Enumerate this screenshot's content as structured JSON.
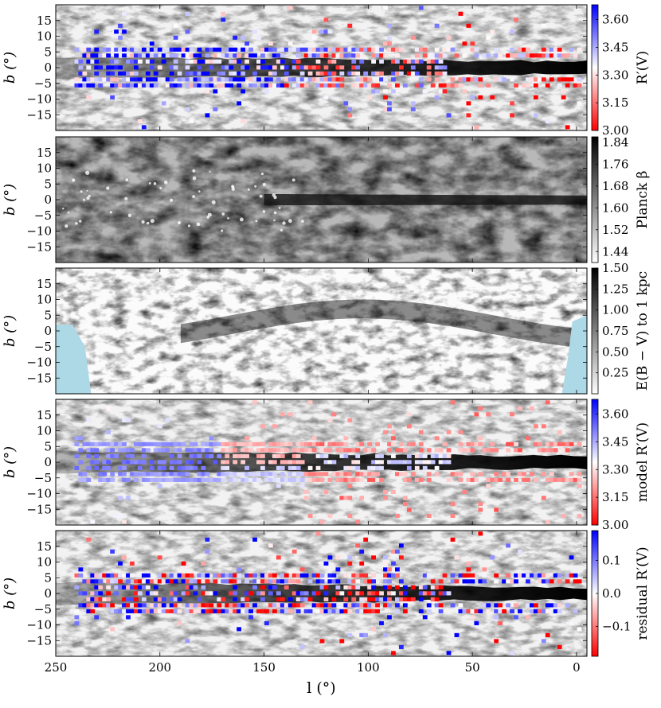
{
  "chart_data": [
    {
      "type": "heatmap",
      "ylabel": "b (°)",
      "colorbar_label": "R′(V)",
      "colorbar_ticks": [
        "3.00",
        "3.15",
        "3.30",
        "3.45",
        "3.60"
      ],
      "colormap": "red-white-blue",
      "clim": [
        3.0,
        3.68
      ],
      "background": "grayscale dust map",
      "yticks": [
        "15",
        "10",
        "5",
        "0",
        "−5",
        "−10",
        "−15"
      ],
      "xticks": []
    },
    {
      "type": "heatmap",
      "ylabel": "b (°)",
      "colorbar_label": "Planck β",
      "colorbar_ticks": [
        "1.44",
        "1.52",
        "1.60",
        "1.68",
        "1.76",
        "1.84"
      ],
      "colormap": "grayscale",
      "clim": [
        1.4,
        1.86
      ],
      "yticks": [
        "15",
        "10",
        "5",
        "0",
        "−5",
        "−10",
        "−15"
      ],
      "xticks": []
    },
    {
      "type": "heatmap",
      "ylabel": "b (°)",
      "colorbar_label": "E(B − V) to 1 kpc",
      "colorbar_ticks": [
        "0.25",
        "0.50",
        "0.75",
        "1.00",
        "1.25",
        "1.50"
      ],
      "colormap": "grayscale",
      "clim": [
        0.0,
        1.5
      ],
      "missing_color": "#add8e6",
      "yticks": [
        "15",
        "10",
        "5",
        "0",
        "−5",
        "−10",
        "−15"
      ],
      "xticks": []
    },
    {
      "type": "heatmap",
      "ylabel": "b (°)",
      "colorbar_label": "model R′(V)",
      "colorbar_ticks": [
        "3.00",
        "3.15",
        "3.30",
        "3.45",
        "3.60"
      ],
      "colormap": "red-white-blue",
      "clim": [
        3.0,
        3.68
      ],
      "background": "grayscale dust map",
      "yticks": [
        "15",
        "10",
        "5",
        "0",
        "−5",
        "−10",
        "−15"
      ],
      "xticks": []
    },
    {
      "type": "heatmap",
      "ylabel": "b (°)",
      "colorbar_label": "residual R′(V)",
      "colorbar_ticks": [
        "−0.1",
        "0.0",
        "0.1"
      ],
      "colormap": "red-white-blue",
      "clim": [
        -0.19,
        0.19
      ],
      "background": "grayscale dust map",
      "yticks": [
        "15",
        "10",
        "5",
        "0",
        "−5",
        "−10",
        "−15"
      ],
      "xticks": [
        "250",
        "200",
        "150",
        "100",
        "50",
        "0"
      ],
      "xlabel": "l (°)"
    }
  ],
  "axes": {
    "x_range": [
      250,
      -5
    ],
    "y_range": [
      -20,
      20
    ]
  }
}
